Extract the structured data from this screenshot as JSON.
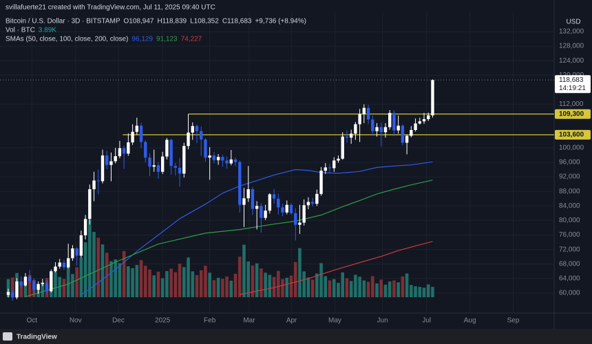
{
  "chart_data": {
    "type": "candlestick",
    "header": {
      "watermark": "svillafuerte21 created with TradingView.com, Jul 11, 2025 09:40 UTC",
      "symbol": "Bitcoin / U.S. Dollar · 3D · BITSTAMP",
      "open_label": "O108,947",
      "high_label": "H118,839",
      "low_label": "L108,352",
      "close_label": "C118,683",
      "change_label": "+9,736 (+8.94%)",
      "volume_title": "Vol · BTC",
      "volume_label": "3.89K",
      "sma_title": "SMAs (50, close, 100, close, 200, close)"
    },
    "currency": "USD",
    "last_price_label": "118,683",
    "countdown": "14:19:21",
    "footer": "TradingView",
    "xlim": [
      -1.93,
      127.35
    ],
    "xticks": [
      {
        "value": 5.5,
        "label": "Oct"
      },
      {
        "value": 15.7,
        "label": "Nov"
      },
      {
        "value": 25.7,
        "label": "Dec"
      },
      {
        "value": 36,
        "label": "2025"
      },
      {
        "value": 47,
        "label": "Feb"
      },
      {
        "value": 56.2,
        "label": "Mar"
      },
      {
        "value": 66.1,
        "label": "Apr"
      },
      {
        "value": 76.2,
        "label": "May"
      },
      {
        "value": 87.3,
        "label": "Jun"
      },
      {
        "value": 97.6,
        "label": "Jul"
      },
      {
        "value": 107.7,
        "label": "Aug"
      },
      {
        "value": 117.8,
        "label": "Sep"
      }
    ],
    "ylim": [
      54500,
      137300
    ],
    "yticks": [
      {
        "value": 60000,
        "label": "60,000"
      },
      {
        "value": 64000,
        "label": "64,000"
      },
      {
        "value": 68000,
        "label": "68,000"
      },
      {
        "value": 72000,
        "label": "72,000"
      },
      {
        "value": 76000,
        "label": "76,000"
      },
      {
        "value": 80000,
        "label": "80,000"
      },
      {
        "value": 84000,
        "label": "84,000"
      },
      {
        "value": 88000,
        "label": "88,000"
      },
      {
        "value": 92000,
        "label": "92,000"
      },
      {
        "value": 96000,
        "label": "96,000"
      },
      {
        "value": 100000,
        "label": "100,000"
      },
      {
        "value": 112000,
        "label": "112,000"
      },
      {
        "value": 120000,
        "label": "120,000"
      },
      {
        "value": 124000,
        "label": "124,000"
      },
      {
        "value": 128000,
        "label": "128,000"
      },
      {
        "value": 132000,
        "label": "132,000"
      }
    ],
    "grid": true,
    "candles": {
      "up_color": "#ffffff",
      "down_color": "#2f5ce8",
      "open": [
        59500,
        60300,
        58800,
        63200,
        62100,
        64500,
        63300,
        60900,
        62500,
        62800,
        60500,
        66000,
        67300,
        68400,
        67100,
        69600,
        72300,
        70300,
        75900,
        80400,
        88600,
        91000,
        90800,
        97900,
        95300,
        96300,
        97700,
        99900,
        98400,
        101500,
        104400,
        106100,
        101600,
        97300,
        94800,
        95200,
        93400,
        97600,
        102200,
        95000,
        94500,
        92900,
        100500,
        104200,
        106000,
        104600,
        102300,
        97300,
        97900,
        96600,
        97500,
        96500,
        95700,
        96800,
        96100,
        84300,
        86100,
        88600,
        83200,
        84000,
        80700,
        82700,
        87200,
        86000,
        83600,
        82200,
        84300,
        82000,
        78800,
        79400,
        84200,
        85100,
        84600,
        87300,
        93700,
        94600,
        94400,
        96500,
        97000,
        103100,
        102800,
        103900,
        106500,
        109300,
        111000,
        107800,
        104600,
        105700,
        104300,
        105700,
        109600,
        104800,
        106100,
        101400,
        103300,
        104900,
        106700,
        107300,
        107900,
        108947
      ],
      "high": [
        61200,
        60900,
        64100,
        64600,
        65500,
        66400,
        64100,
        63200,
        63900,
        63500,
        66500,
        68500,
        69400,
        69200,
        73600,
        73200,
        72600,
        77200,
        81500,
        89900,
        93400,
        94000,
        99500,
        99200,
        98700,
        100000,
        101900,
        100600,
        104000,
        106500,
        108300,
        106900,
        102100,
        98500,
        99500,
        96100,
        98900,
        102700,
        102500,
        95800,
        97200,
        101400,
        109300,
        107000,
        106400,
        105900,
        102700,
        100200,
        98800,
        98300,
        98100,
        97600,
        99400,
        97300,
        96500,
        89000,
        95000,
        89200,
        85300,
        84800,
        84300,
        87500,
        88700,
        87400,
        84600,
        85500,
        84700,
        83400,
        84300,
        85800,
        86400,
        86200,
        88500,
        94700,
        95800,
        95600,
        97400,
        97900,
        104300,
        104800,
        105000,
        107100,
        110700,
        112000,
        111800,
        108900,
        106800,
        106900,
        106800,
        110400,
        110300,
        108900,
        106500,
        103600,
        106000,
        108100,
        108300,
        109600,
        109700,
        118839
      ],
      "low": [
        58800,
        57900,
        58300,
        61500,
        61800,
        62700,
        59900,
        59800,
        61900,
        59600,
        60200,
        65700,
        66700,
        66400,
        66800,
        68900,
        67500,
        69700,
        74800,
        78900,
        85300,
        87200,
        90200,
        94100,
        90800,
        95700,
        97100,
        94200,
        97800,
        100800,
        103600,
        99900,
        95900,
        92200,
        93400,
        91500,
        92800,
        96800,
        92600,
        92400,
        89300,
        91800,
        99600,
        102200,
        101300,
        97800,
        96200,
        91200,
        95700,
        95300,
        94800,
        94300,
        95200,
        94900,
        82200,
        78200,
        85100,
        81500,
        77500,
        76600,
        80100,
        81900,
        84600,
        81600,
        81200,
        81700,
        81600,
        74500,
        76300,
        78600,
        83100,
        83900,
        84000,
        86800,
        92800,
        92900,
        93400,
        95900,
        96700,
        101400,
        101100,
        102200,
        101600,
        106800,
        106600,
        103600,
        103100,
        100400,
        102800,
        105000,
        103200,
        103900,
        100700,
        98200,
        102900,
        104500,
        106400,
        106600,
        107400,
        108352
      ],
      "close": [
        60300,
        58800,
        63200,
        62100,
        64500,
        63300,
        60900,
        62500,
        62800,
        60500,
        66000,
        67300,
        68400,
        67100,
        69600,
        72300,
        70300,
        75900,
        80400,
        88600,
        91000,
        90800,
        97900,
        95300,
        96300,
        97700,
        99900,
        98400,
        101500,
        104400,
        106100,
        101600,
        97300,
        94800,
        95200,
        93400,
        97600,
        102200,
        95000,
        94500,
        92900,
        100500,
        104200,
        106000,
        104600,
        102300,
        97300,
        97900,
        96600,
        97500,
        96500,
        95700,
        96800,
        96100,
        84300,
        86100,
        88600,
        83200,
        84000,
        80700,
        82700,
        87200,
        86000,
        83600,
        82200,
        84300,
        82000,
        78800,
        79400,
        84200,
        85100,
        84600,
        87300,
        93700,
        94600,
        94400,
        96500,
        97000,
        103100,
        102800,
        103900,
        106500,
        109300,
        111000,
        107800,
        104600,
        105700,
        104300,
        105700,
        109600,
        104800,
        106100,
        101400,
        103300,
        104900,
        106700,
        107300,
        107900,
        108947,
        118683
      ]
    },
    "volume": {
      "up_color": "#1f6f68",
      "down_color": "#7d2f35",
      "ylim": [
        0,
        40000
      ],
      "values": [
        6800,
        7400,
        9100,
        5200,
        6100,
        8300,
        6500,
        4900,
        5600,
        7200,
        8800,
        9500,
        7600,
        6900,
        12400,
        8700,
        11200,
        14800,
        20600,
        29000,
        24500,
        22300,
        19800,
        16700,
        13500,
        14200,
        12800,
        17300,
        11600,
        10900,
        12100,
        13900,
        11800,
        10400,
        8200,
        9600,
        7100,
        9800,
        10700,
        9400,
        12600,
        11300,
        14900,
        9700,
        8300,
        10100,
        11800,
        9200,
        6400,
        7300,
        6900,
        7800,
        6200,
        8800,
        15200,
        19700,
        13400,
        11900,
        12700,
        10800,
        9200,
        8400,
        7600,
        9900,
        6800,
        7300,
        8100,
        13200,
        18400,
        9700,
        7400,
        6600,
        8900,
        12800,
        7900,
        6300,
        6800,
        5400,
        9300,
        7100,
        6100,
        8400,
        7700,
        6300,
        5800,
        7900,
        5200,
        6600,
        4700,
        5900,
        6300,
        5600,
        7800,
        8900,
        4600,
        4100,
        3900,
        3600,
        4800,
        3890
      ]
    },
    "sma": [
      {
        "color": "#2f5ce8",
        "value_label": "96,129",
        "x": [
          17,
          20,
          25,
          30,
          35,
          40,
          46,
          50,
          54,
          58,
          62,
          67,
          70,
          73,
          77,
          82,
          86,
          90,
          94,
          99
        ],
        "values": [
          59500,
          62000,
          66500,
          71500,
          76000,
          80500,
          84500,
          87500,
          89500,
          91000,
          92500,
          94000,
          93800,
          93200,
          93000,
          93500,
          94600,
          95000,
          95300,
          96129
        ]
      },
      {
        "color": "#2e9e48",
        "value_label": "91,123",
        "x": [
          4,
          14,
          25,
          35,
          46,
          54,
          62,
          67,
          73,
          78,
          82,
          86,
          90,
          94,
          99
        ],
        "values": [
          59000,
          62500,
          68500,
          73500,
          76500,
          77500,
          79000,
          79800,
          81500,
          83800,
          85500,
          87300,
          88600,
          89800,
          91123
        ]
      },
      {
        "color": "#d03b3b",
        "value_label": "74,227",
        "x": [
          54,
          62,
          70,
          76,
          82,
          87,
          91,
          95,
          99
        ],
        "values": [
          59600,
          61500,
          64000,
          66300,
          68400,
          70100,
          71700,
          73000,
          74227
        ]
      }
    ],
    "levels": [
      {
        "value": 109300,
        "label": "109,300",
        "from": 42,
        "color": "#d6c63a"
      },
      {
        "value": 103600,
        "label": "103,600",
        "from": 26.7,
        "color": "#d6c63a"
      }
    ]
  }
}
